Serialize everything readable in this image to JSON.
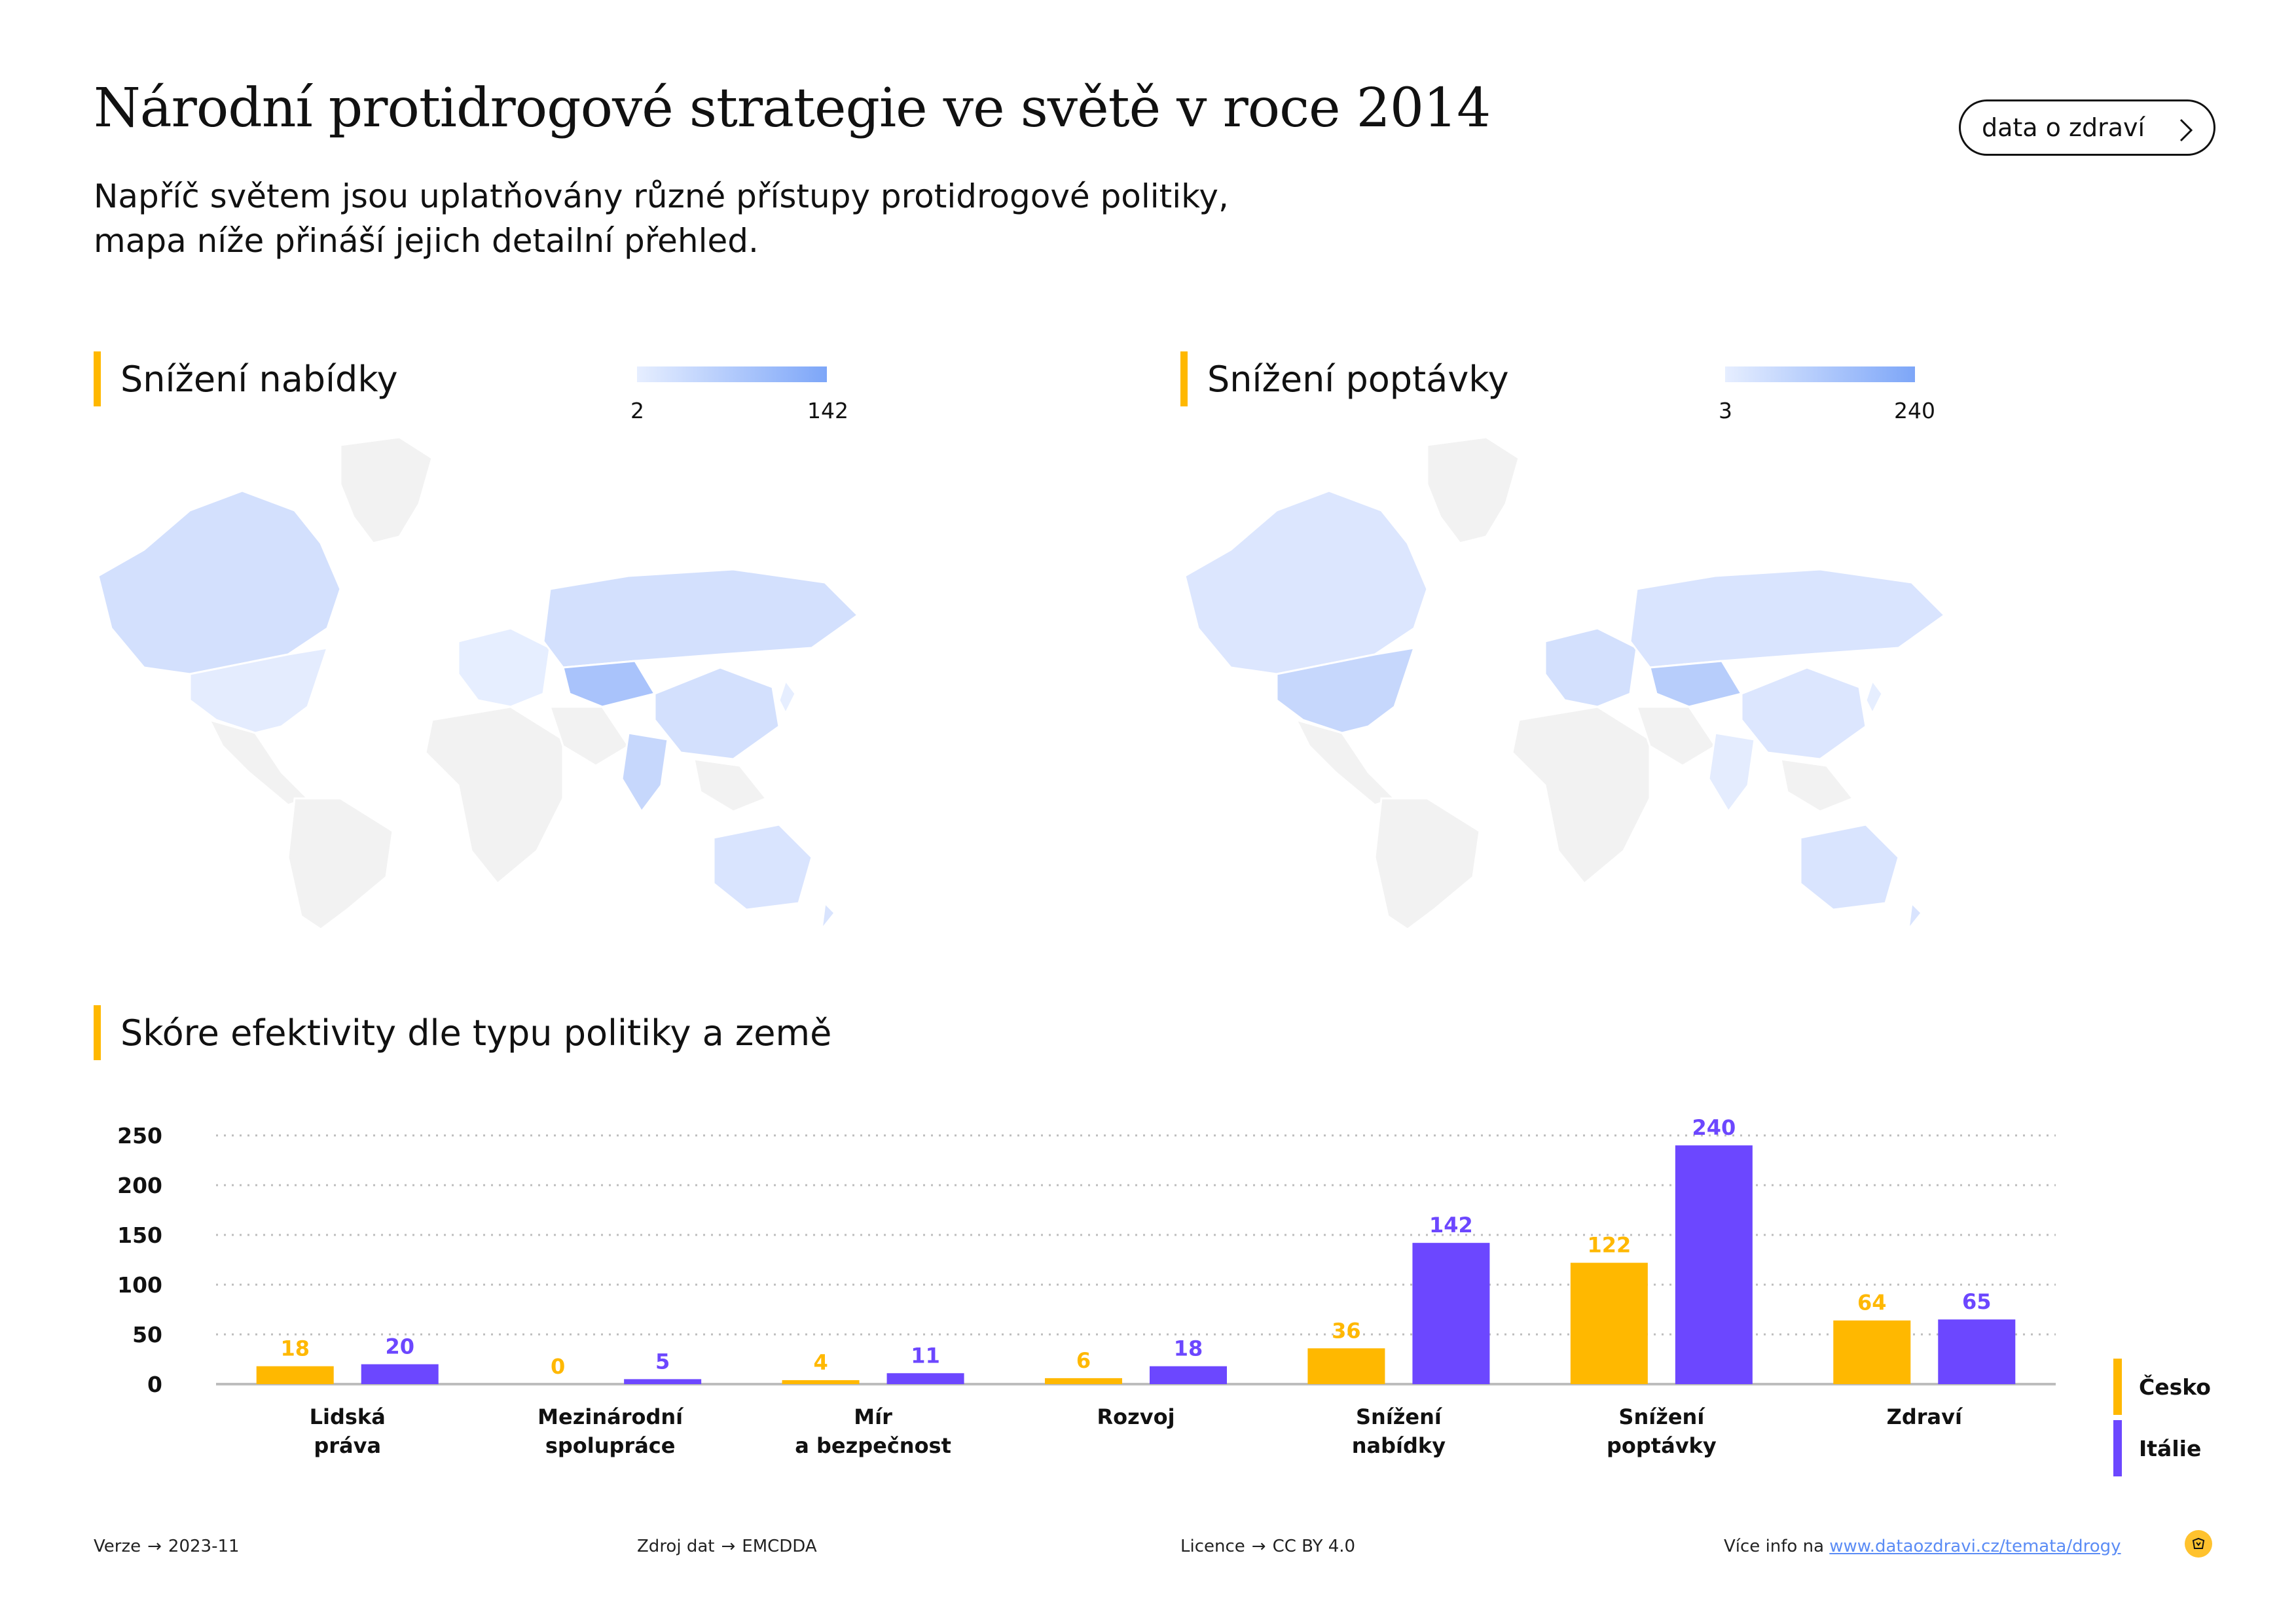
{
  "header": {
    "title": "Národní protidrogové strategie ve světě v roce 2014",
    "subtitle_line1": "Napříč světem jsou uplatňovány různé přístupy protidrogové politiky,",
    "subtitle_line2": "mapa níže přináší jejich detailní přehled.",
    "nav_button": "data o zdraví"
  },
  "maps": [
    {
      "title": "Snížení nabídky",
      "legend_min": "2",
      "legend_max": "142"
    },
    {
      "title": "Snížení poptávky",
      "legend_min": "3",
      "legend_max": "240"
    }
  ],
  "colors": {
    "accent": "#FFB800",
    "cesko": "#FFB800",
    "italie": "#6C47FF",
    "map_low": "#E6EEFF",
    "map_high": "#7DA6F8",
    "land": "#F2F2F2"
  },
  "chart_data": {
    "type": "bar",
    "title": "Skóre efektivity dle typu politiky a země",
    "categories": [
      [
        "Lidská",
        "práva"
      ],
      [
        "Mezinárodní",
        "spolupráce"
      ],
      [
        "Mír",
        "a bezpečnost"
      ],
      [
        "Rozvoj"
      ],
      [
        "Snížení",
        "nabídky"
      ],
      [
        "Snížení",
        "poptávky"
      ],
      [
        "Zdraví"
      ]
    ],
    "series": [
      {
        "name": "Česko",
        "color": "#FFB800",
        "values": [
          18,
          0,
          4,
          6,
          36,
          122,
          64
        ]
      },
      {
        "name": "Itálie",
        "color": "#6C47FF",
        "values": [
          20,
          5,
          11,
          18,
          142,
          240,
          65
        ]
      }
    ],
    "yticks": [
      0,
      50,
      100,
      150,
      200,
      250
    ],
    "ylim": [
      0,
      250
    ],
    "grid": true,
    "legend": "bottom-right"
  },
  "footer": {
    "version_label": "Verze",
    "version_value": "2023-11",
    "source_label": "Zdroj dat",
    "source_value": "EMCDDA",
    "license_label": "Licence",
    "license_value": "CC BY 4.0",
    "info_label": "Více info na",
    "info_link": "www.dataozdravi.cz/temata/drogy"
  }
}
